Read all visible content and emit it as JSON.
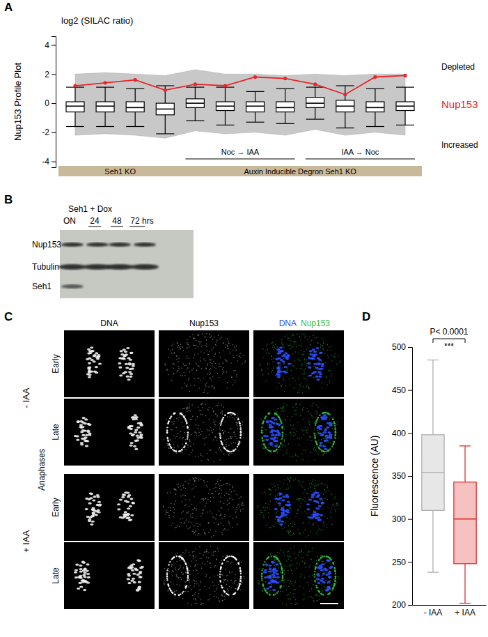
{
  "panel_labels": [
    "A",
    "B",
    "C",
    "D"
  ],
  "chart_data": [
    {
      "type": "box",
      "y_label": "Nup153 Profile Plot",
      "y_unit_label": "log2 (SILAC ratio)",
      "categories": [
        null,
        null,
        null,
        null,
        null,
        null,
        null,
        null,
        null,
        null,
        null,
        null
      ],
      "ylim": [
        -4.4,
        4.6
      ],
      "yticks": [
        -4,
        -2,
        0,
        2,
        4
      ],
      "tick_labels": "y",
      "boxes": {
        "min": [
          -1.6,
          -1.6,
          -1.6,
          -2.1,
          -1.2,
          -1.5,
          -1.3,
          -1.4,
          -1.1,
          -1.7,
          -1.6,
          -1.5
        ],
        "q1": [
          -0.6,
          -0.6,
          -0.6,
          -0.8,
          -0.3,
          -0.5,
          -0.6,
          -0.6,
          -0.3,
          -0.6,
          -0.6,
          -0.5
        ],
        "median": [
          -0.2,
          -0.2,
          -0.3,
          -0.4,
          0,
          -0.2,
          -0.2,
          -0.3,
          0,
          -0.2,
          -0.3,
          -0.2
        ],
        "q3": [
          0.1,
          0.1,
          0.1,
          0.0,
          0.3,
          0.1,
          0.1,
          0.1,
          0.4,
          0.2,
          0.1,
          0.1
        ],
        "max": [
          1.1,
          1.1,
          1.0,
          1.2,
          1.1,
          1.1,
          0.8,
          1.0,
          1.1,
          1.2,
          1.0,
          1.1
        ]
      },
      "envelope": {
        "upper": [
          2.0,
          2.1,
          2.0,
          1.9,
          2.3,
          2.0,
          2.0,
          1.9,
          2.0,
          1.9,
          2.0,
          2.0
        ],
        "lower": [
          -2.2,
          -2.1,
          -2.2,
          -2.4,
          -1.9,
          -2.1,
          -2.0,
          -2.2,
          -1.8,
          -2.2,
          -2.0,
          -2.2
        ],
        "color": "#c8c8c8"
      },
      "series": [
        {
          "name": "Nup153",
          "color": "#e8262a",
          "values": [
            1.2,
            1.4,
            1.6,
            0.9,
            1.3,
            1.2,
            1.8,
            1.7,
            1.3,
            0.6,
            1.8,
            1.9
          ],
          "type": "line",
          "marker": "circle"
        }
      ],
      "annotations": [
        "Depleted",
        "Increased"
      ],
      "groups": [
        {
          "label": "Seh1 KO",
          "start": 0,
          "end": 3
        },
        {
          "label": "Auxin Inducible Degron Seh1 KO",
          "start": 4,
          "end": 11
        }
      ],
      "treatments": [
        {
          "label": "Noc → IAA",
          "start": 4,
          "end": 7
        },
        {
          "label": "IAA → Noc",
          "start": 8,
          "end": 11
        }
      ]
    },
    {
      "type": "box",
      "y_label": "Fluorescence (AU)",
      "categories": [
        "- IAA",
        "+ IAA"
      ],
      "ylim": [
        200,
        500
      ],
      "yticks": [
        200,
        250,
        300,
        350,
        400,
        450,
        500
      ],
      "boxes": {
        "min": [
          238,
          202
        ],
        "q1": [
          310,
          248
        ],
        "median": [
          354,
          300
        ],
        "q3": [
          398,
          343
        ],
        "max": [
          485,
          385
        ]
      },
      "colors": [
        "#b0b0b0",
        "#e03030"
      ],
      "annotations": [
        "P< 0.0001",
        "***"
      ]
    }
  ],
  "blot": {
    "header": "Seh1 + Dox",
    "lanes": [
      "ON",
      "24",
      "48",
      "72 hrs"
    ],
    "rows": [
      "Nup153",
      "Tubulin",
      "Seh1"
    ],
    "bands": [
      [
        true,
        true,
        true,
        true
      ],
      [
        true,
        true,
        true,
        true
      ],
      [
        true,
        false,
        false,
        false
      ]
    ]
  },
  "microscopy": {
    "columns": [
      "DNA",
      "Nup153"
    ],
    "merge_labels": [
      "DNA",
      "Nup153"
    ],
    "colors": [
      "#2b4cff",
      "#2fbf3a"
    ],
    "rows": [
      "Early",
      "Late",
      "Early",
      "Late"
    ],
    "conditions": [
      "- IAA",
      "+ IAA"
    ],
    "side_label": "Anaphases"
  }
}
